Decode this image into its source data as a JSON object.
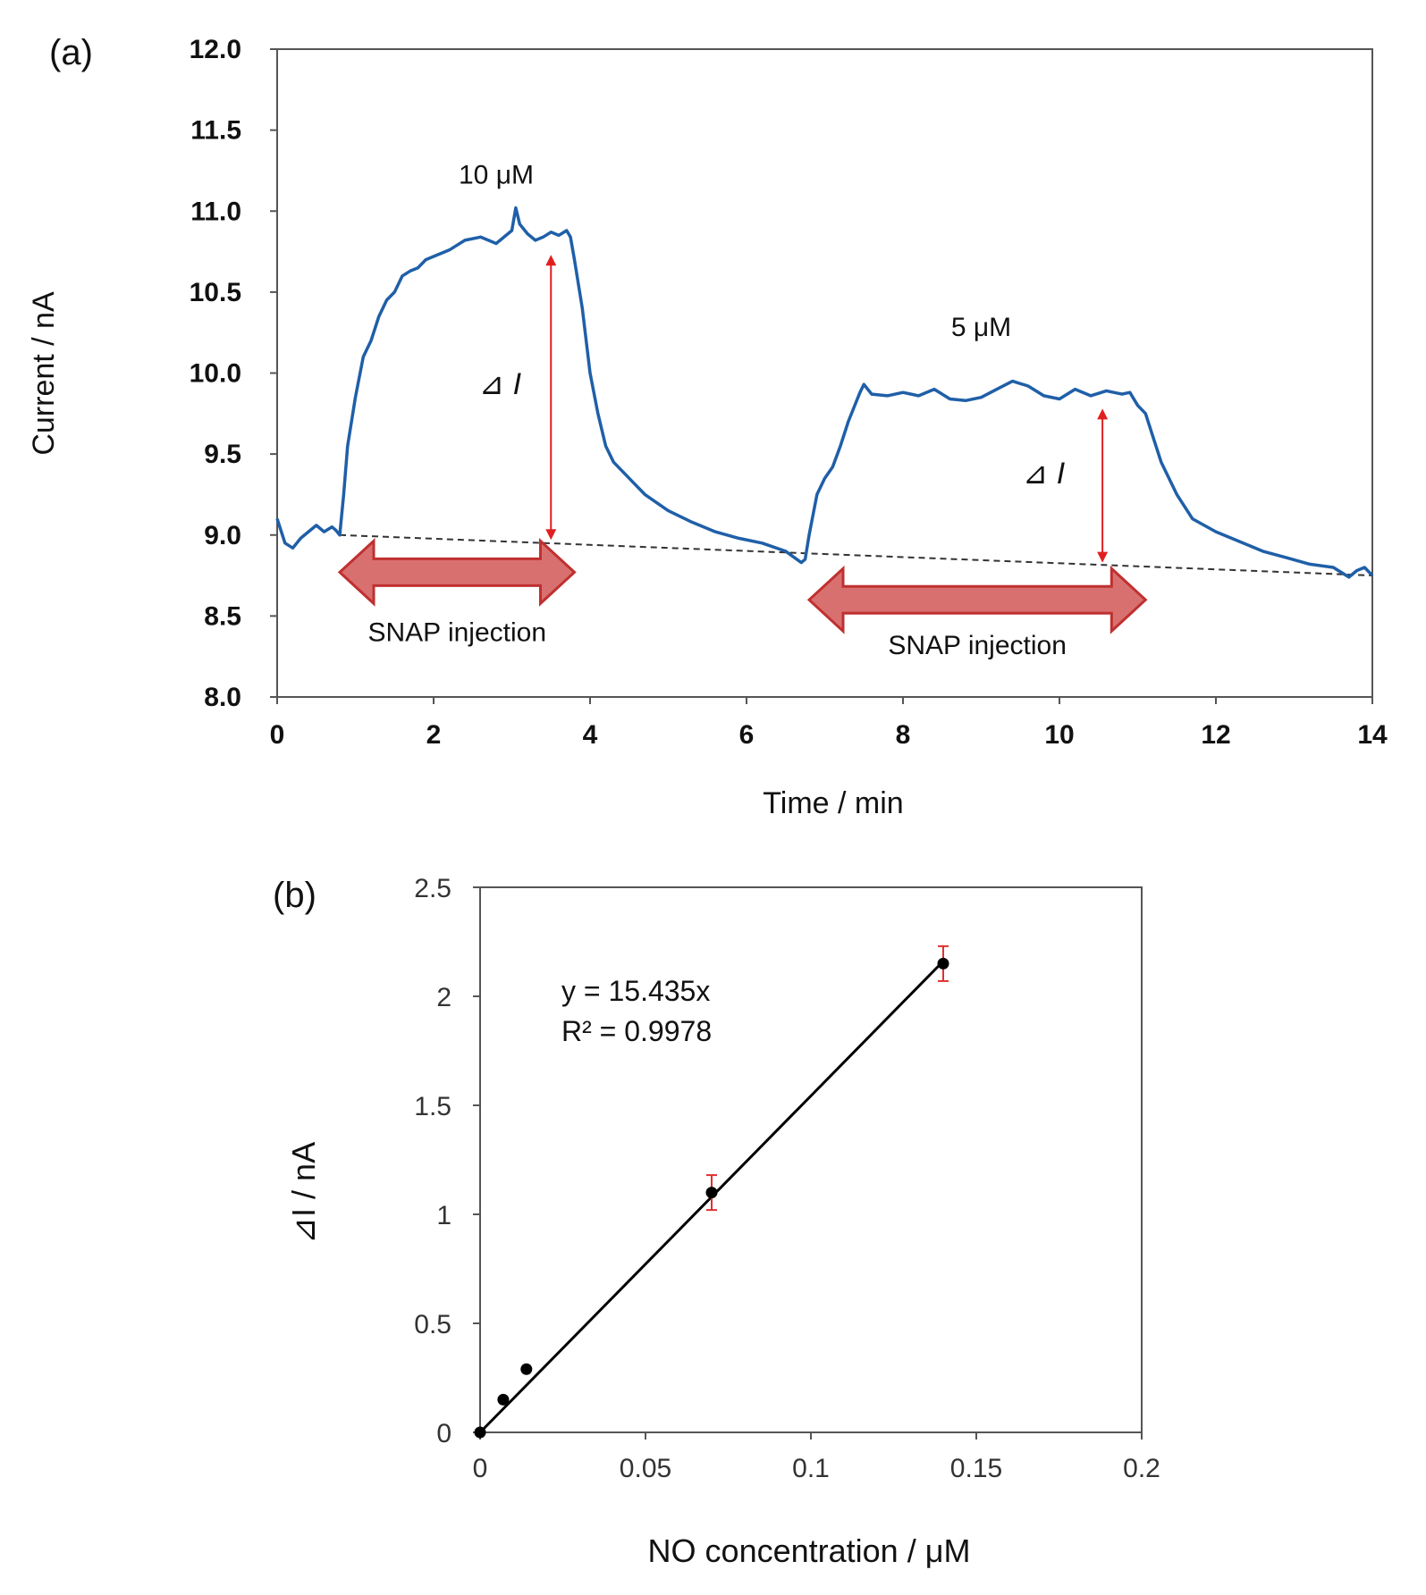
{
  "chart_data": [
    {
      "type": "line",
      "panel_label": "(a)",
      "xlabel": "Time  / min",
      "ylabel": "Current  / nA",
      "xlim": [
        0,
        14
      ],
      "ylim": [
        8.0,
        12.0
      ],
      "xticks": [
        "0",
        "2",
        "4",
        "6",
        "8",
        "10",
        "12",
        "14"
      ],
      "yticks": [
        "8.0",
        "8.5",
        "9.0",
        "9.5",
        "10.0",
        "10.5",
        "11.0",
        "11.5",
        "12.0"
      ],
      "grid": false,
      "series": [
        {
          "name": "Current",
          "color": "#1f5fa8",
          "x": [
            0.0,
            0.1,
            0.2,
            0.3,
            0.4,
            0.5,
            0.6,
            0.7,
            0.75,
            0.8,
            0.85,
            0.9,
            1.0,
            1.1,
            1.2,
            1.3,
            1.4,
            1.5,
            1.6,
            1.7,
            1.8,
            1.9,
            2.0,
            2.2,
            2.4,
            2.6,
            2.8,
            3.0,
            3.05,
            3.1,
            3.2,
            3.3,
            3.4,
            3.5,
            3.6,
            3.7,
            3.75,
            3.8,
            3.9,
            4.0,
            4.1,
            4.2,
            4.3,
            4.5,
            4.7,
            5.0,
            5.3,
            5.6,
            5.9,
            6.2,
            6.5,
            6.7,
            6.75,
            6.8,
            6.9,
            7.0,
            7.1,
            7.2,
            7.3,
            7.4,
            7.45,
            7.5,
            7.6,
            7.8,
            8.0,
            8.2,
            8.4,
            8.6,
            8.8,
            9.0,
            9.2,
            9.4,
            9.6,
            9.8,
            10.0,
            10.2,
            10.4,
            10.6,
            10.8,
            10.9,
            11.0,
            11.1,
            11.2,
            11.3,
            11.5,
            11.7,
            12.0,
            12.3,
            12.6,
            12.9,
            13.2,
            13.5,
            13.6,
            13.7,
            13.8,
            13.9,
            14.0
          ],
          "y": [
            9.1,
            8.95,
            8.92,
            8.98,
            9.02,
            9.06,
            9.02,
            9.05,
            9.03,
            9.0,
            9.25,
            9.55,
            9.85,
            10.1,
            10.2,
            10.35,
            10.45,
            10.5,
            10.6,
            10.63,
            10.65,
            10.7,
            10.72,
            10.76,
            10.82,
            10.84,
            10.8,
            10.88,
            11.02,
            10.92,
            10.86,
            10.82,
            10.84,
            10.87,
            10.85,
            10.88,
            10.84,
            10.7,
            10.4,
            10.0,
            9.75,
            9.55,
            9.45,
            9.35,
            9.25,
            9.15,
            9.08,
            9.02,
            8.98,
            8.95,
            8.9,
            8.83,
            8.85,
            9.0,
            9.25,
            9.35,
            9.42,
            9.55,
            9.7,
            9.82,
            9.88,
            9.93,
            9.87,
            9.86,
            9.88,
            9.86,
            9.9,
            9.84,
            9.83,
            9.85,
            9.9,
            9.95,
            9.92,
            9.86,
            9.84,
            9.9,
            9.86,
            9.89,
            9.87,
            9.88,
            9.8,
            9.75,
            9.6,
            9.45,
            9.25,
            9.1,
            9.02,
            8.96,
            8.9,
            8.86,
            8.82,
            8.8,
            8.77,
            8.74,
            8.78,
            8.8,
            8.75
          ]
        }
      ],
      "baseline": {
        "x": [
          0.8,
          14.0
        ],
        "y": [
          9.0,
          8.75
        ],
        "style": "dashed"
      },
      "annotations": [
        {
          "text": "10 μM",
          "x": 2.8,
          "y": 11.17
        },
        {
          "text": "5 μM",
          "x": 9.0,
          "y": 10.23
        },
        {
          "text": "⊿ I",
          "x": 2.85,
          "y": 9.87
        },
        {
          "text": "⊿ I",
          "x": 9.8,
          "y": 9.32
        }
      ],
      "delta_arrows": [
        {
          "x": 3.5,
          "y_from": 8.97,
          "y_to": 10.73,
          "color": "#e02020"
        },
        {
          "x": 10.55,
          "y_from": 8.83,
          "y_to": 9.78,
          "color": "#e02020"
        }
      ],
      "injection_arrows": [
        {
          "label": "SNAP injection",
          "x_start": 0.8,
          "x_end": 3.8,
          "y": 8.77,
          "label_y": 8.4
        },
        {
          "label": "SNAP injection",
          "x_start": 6.8,
          "x_end": 11.1,
          "y": 8.6,
          "label_y": 8.32
        }
      ],
      "arrow_fill_color": "#d97070",
      "arrow_stroke_color": "#c03030"
    },
    {
      "type": "scatter",
      "panel_label": "(b)",
      "xlabel": "NO concentration / μM",
      "ylabel": "⊿I / nA",
      "xlim": [
        0,
        0.2
      ],
      "ylim": [
        0,
        2.5
      ],
      "xticks": [
        "0",
        "0.05",
        "0.1",
        "0.15",
        "0.2"
      ],
      "yticks": [
        "0",
        "0.5",
        "1",
        "1.5",
        "2",
        "2.5"
      ],
      "grid": false,
      "points": [
        {
          "x": 0,
          "y": 0,
          "err": 0
        },
        {
          "x": 0.007,
          "y": 0.15,
          "err": 0
        },
        {
          "x": 0.014,
          "y": 0.29,
          "err": 0
        },
        {
          "x": 0.07,
          "y": 1.1,
          "err": 0.08
        },
        {
          "x": 0.14,
          "y": 2.15,
          "err": 0.08
        }
      ],
      "error_bar_color": "#e03030",
      "trendline": {
        "slope": 15.435,
        "x": [
          0,
          0.14
        ]
      },
      "equation": "y = 15.435x",
      "r_squared": "R² = 0.9978"
    }
  ]
}
